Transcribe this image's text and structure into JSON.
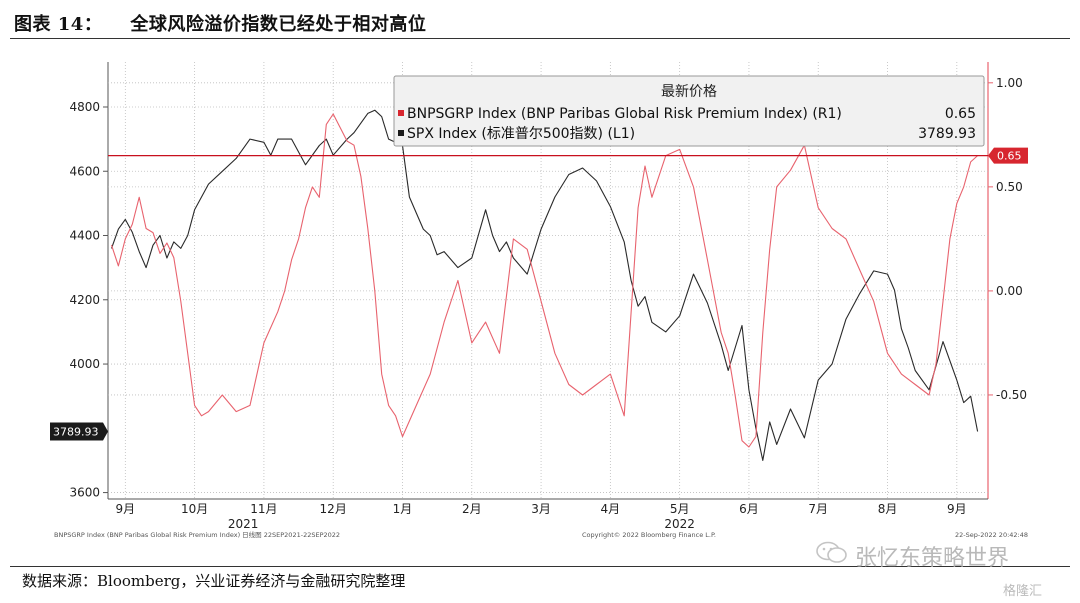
{
  "header": {
    "figure_no": "图表 14：",
    "title": "全球风险溢价指数已经处于相对高位"
  },
  "footer": {
    "source": "数据来源：Bloomberg，兴业证券经济与金融研究院整理",
    "watermark": "张忆东策略世界",
    "logo": "格隆汇"
  },
  "chart_data": {
    "type": "line",
    "legend": {
      "title": "最新价格",
      "placement": "top-right",
      "items": [
        {
          "label": "BNPSGRP Index (BNP Paribas Global Risk Premium Index) (R1)",
          "value": "0.65"
        },
        {
          "label": "SPX Index (标准普尔500指数) (L1)",
          "value": "3789.93"
        }
      ]
    },
    "y_left": {
      "ticks": [
        "4800",
        "4600",
        "4400",
        "4200",
        "4000",
        "3600"
      ],
      "range": [
        3580,
        4940
      ]
    },
    "y_right": {
      "ticks": [
        "1.00",
        "0.50",
        "0.00",
        "-0.50"
      ],
      "range": [
        -1.0,
        1.1
      ]
    },
    "x_ticks": [
      "9月",
      "10月",
      "11月",
      "12月",
      "1月",
      "2月",
      "3月",
      "4月",
      "5月",
      "6月",
      "7月",
      "8月",
      "9月"
    ],
    "x_tick_pos": [
      0,
      1,
      2,
      3,
      4,
      5,
      6,
      7,
      8,
      9,
      10,
      11,
      12
    ],
    "x_range": [
      -0.25,
      12.45
    ],
    "year_labels": [
      {
        "text": "2021",
        "at": 1.7
      },
      {
        "text": "2022",
        "at": 8.0
      }
    ],
    "latest_left_label": "3789.93",
    "latest_right_label": "0.65",
    "reference_line_right": 0.65,
    "footnotes": {
      "left": "BNPSGRP Index (BNP Paribas Global Risk Premium Index)  日线图 22SEP2021-22SEP2022",
      "center": "Copyright© 2022 Bloomberg Finance L.P.",
      "right": "22-Sep-2022 20:42:48"
    },
    "series": [
      {
        "name": "SPX Index (标准普尔500指数) (L1)",
        "axis": "left",
        "color": "#2a2a2a",
        "x": [
          -0.2,
          -0.1,
          0.0,
          0.1,
          0.2,
          0.3,
          0.4,
          0.5,
          0.6,
          0.7,
          0.8,
          0.9,
          1.0,
          1.2,
          1.4,
          1.6,
          1.8,
          2.0,
          2.1,
          2.2,
          2.4,
          2.6,
          2.8,
          2.9,
          3.0,
          3.2,
          3.3,
          3.5,
          3.6,
          3.7,
          3.8,
          4.0,
          4.1,
          4.2,
          4.3,
          4.4,
          4.5,
          4.6,
          4.8,
          5.0,
          5.2,
          5.3,
          5.4,
          5.5,
          5.6,
          5.8,
          5.9,
          6.0,
          6.2,
          6.4,
          6.6,
          6.8,
          7.0,
          7.2,
          7.3,
          7.4,
          7.5,
          7.6,
          7.8,
          8.0,
          8.2,
          8.4,
          8.6,
          8.7,
          8.8,
          8.9,
          9.0,
          9.1,
          9.2,
          9.3,
          9.4,
          9.6,
          9.8,
          10.0,
          10.2,
          10.4,
          10.6,
          10.8,
          11.0,
          11.1,
          11.2,
          11.3,
          11.4,
          11.6,
          11.8,
          12.0,
          12.1,
          12.2,
          12.3
        ],
        "y": [
          4360,
          4420,
          4450,
          4410,
          4350,
          4300,
          4370,
          4400,
          4330,
          4380,
          4360,
          4400,
          4480,
          4560,
          4600,
          4640,
          4700,
          4690,
          4650,
          4700,
          4700,
          4620,
          4680,
          4700,
          4650,
          4700,
          4720,
          4780,
          4790,
          4770,
          4700,
          4680,
          4520,
          4470,
          4420,
          4400,
          4340,
          4350,
          4300,
          4330,
          4480,
          4400,
          4350,
          4380,
          4330,
          4280,
          4350,
          4420,
          4520,
          4590,
          4610,
          4570,
          4490,
          4380,
          4260,
          4180,
          4210,
          4130,
          4100,
          4150,
          4280,
          4190,
          4060,
          3980,
          4050,
          4120,
          3920,
          3800,
          3700,
          3820,
          3750,
          3860,
          3770,
          3950,
          4000,
          4140,
          4220,
          4290,
          4280,
          4230,
          4110,
          4050,
          3980,
          3920,
          4070,
          3950,
          3880,
          3900,
          3790
        ]
      },
      {
        "name": "BNPSGRP Index (BNP Paribas Global Risk Premium Index) (R1)",
        "axis": "right",
        "color": "#e8636e",
        "x": [
          -0.2,
          -0.1,
          0.0,
          0.1,
          0.2,
          0.3,
          0.4,
          0.5,
          0.6,
          0.7,
          0.8,
          0.9,
          1.0,
          1.1,
          1.2,
          1.4,
          1.6,
          1.8,
          2.0,
          2.2,
          2.3,
          2.4,
          2.5,
          2.6,
          2.7,
          2.8,
          2.9,
          3.0,
          3.2,
          3.3,
          3.4,
          3.5,
          3.6,
          3.7,
          3.8,
          3.9,
          4.0,
          4.2,
          4.4,
          4.6,
          4.8,
          5.0,
          5.2,
          5.4,
          5.6,
          5.8,
          6.0,
          6.2,
          6.4,
          6.6,
          6.8,
          7.0,
          7.2,
          7.4,
          7.5,
          7.6,
          7.8,
          8.0,
          8.2,
          8.4,
          8.6,
          8.7,
          8.8,
          8.9,
          9.0,
          9.1,
          9.2,
          9.3,
          9.4,
          9.6,
          9.8,
          10.0,
          10.2,
          10.4,
          10.6,
          10.8,
          11.0,
          11.2,
          11.4,
          11.6,
          11.7,
          11.8,
          11.9,
          12.0,
          12.1,
          12.2,
          12.3
        ],
        "y": [
          0.22,
          0.12,
          0.25,
          0.32,
          0.45,
          0.3,
          0.28,
          0.18,
          0.23,
          0.16,
          -0.05,
          -0.3,
          -0.55,
          -0.6,
          -0.58,
          -0.5,
          -0.58,
          -0.55,
          -0.25,
          -0.1,
          0.0,
          0.15,
          0.25,
          0.4,
          0.5,
          0.45,
          0.8,
          0.85,
          0.72,
          0.7,
          0.55,
          0.3,
          0.0,
          -0.4,
          -0.55,
          -0.6,
          -0.7,
          -0.55,
          -0.4,
          -0.15,
          0.05,
          -0.25,
          -0.15,
          -0.3,
          0.25,
          0.2,
          -0.05,
          -0.3,
          -0.45,
          -0.5,
          -0.45,
          -0.4,
          -0.6,
          0.4,
          0.6,
          0.45,
          0.65,
          0.68,
          0.5,
          0.15,
          -0.2,
          -0.3,
          -0.5,
          -0.72,
          -0.75,
          -0.7,
          -0.2,
          0.2,
          0.5,
          0.58,
          0.7,
          0.4,
          0.3,
          0.25,
          0.1,
          -0.05,
          -0.3,
          -0.4,
          -0.45,
          -0.5,
          -0.35,
          -0.05,
          0.25,
          0.42,
          0.5,
          0.62,
          0.65
        ]
      }
    ]
  }
}
